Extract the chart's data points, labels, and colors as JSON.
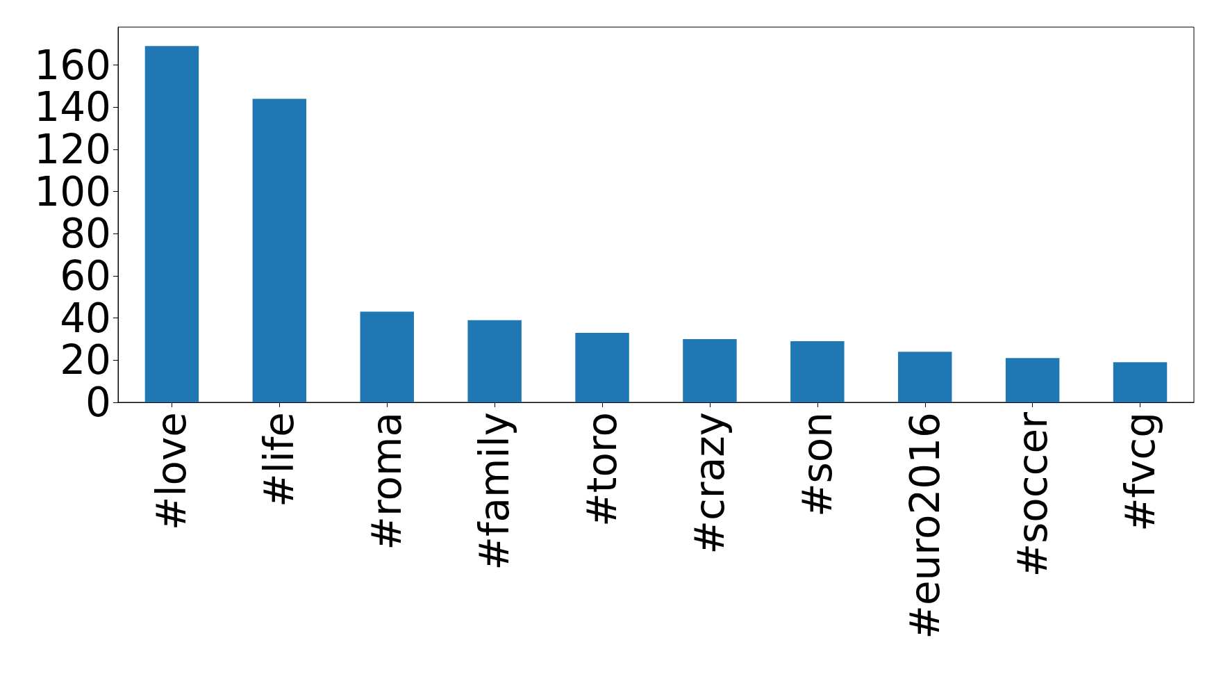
{
  "chart_data": {
    "type": "bar",
    "categories": [
      "#love",
      "#life",
      "#roma",
      "#family",
      "#toro",
      "#crazy",
      "#son",
      "#euro2016",
      "#soccer",
      "#fvcg"
    ],
    "values": [
      169,
      144,
      43,
      39,
      33,
      30,
      29,
      24,
      21,
      19
    ],
    "color": "#1f77b4",
    "ylim": [
      0,
      178
    ],
    "yticks": [
      0,
      20,
      40,
      60,
      80,
      100,
      120,
      140,
      160
    ],
    "grid": false
  }
}
